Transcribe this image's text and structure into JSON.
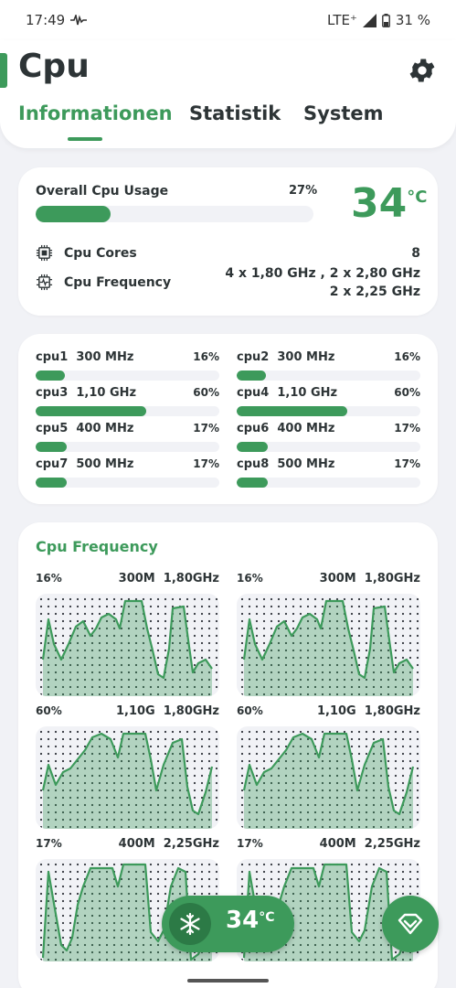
{
  "status_bar": {
    "time": "17:49",
    "network": "LTE⁺",
    "battery": "31 %"
  },
  "header": {
    "title": "Cpu",
    "tabs": [
      {
        "label": "Informationen",
        "active": true
      },
      {
        "label": "Statistik",
        "active": false
      },
      {
        "label": "System",
        "active": false
      }
    ]
  },
  "overview": {
    "usage_label": "Overall Cpu Usage",
    "usage_pct": "27%",
    "usage_value": 27,
    "temperature": "34",
    "temperature_unit": "°C",
    "cores_label": "Cpu Cores",
    "cores_value": "8",
    "frequency_label": "Cpu Frequency",
    "frequency_line1": "4 x 1,80 GHz , 2 x 2,80 GHz",
    "frequency_line2": "2 x 2,25 GHz"
  },
  "cores": [
    {
      "name": "cpu1",
      "freq": "300 MHz",
      "pct": "16%",
      "value": 16
    },
    {
      "name": "cpu2",
      "freq": "300 MHz",
      "pct": "16%",
      "value": 16
    },
    {
      "name": "cpu3",
      "freq": "1,10 GHz",
      "pct": "60%",
      "value": 60
    },
    {
      "name": "cpu4",
      "freq": "1,10 GHz",
      "pct": "60%",
      "value": 60
    },
    {
      "name": "cpu5",
      "freq": "400 MHz",
      "pct": "17%",
      "value": 17
    },
    {
      "name": "cpu6",
      "freq": "400 MHz",
      "pct": "17%",
      "value": 17
    },
    {
      "name": "cpu7",
      "freq": "500 MHz",
      "pct": "17%",
      "value": 17
    },
    {
      "name": "cpu8",
      "freq": "500 MHz",
      "pct": "17%",
      "value": 17
    }
  ],
  "frequency_graphs": {
    "title": "Cpu Frequency",
    "graphs": [
      {
        "pct": "16%",
        "current": "300M",
        "max": "1,80GHz"
      },
      {
        "pct": "16%",
        "current": "300M",
        "max": "1,80GHz"
      },
      {
        "pct": "60%",
        "current": "1,10G",
        "max": "1,80GHz"
      },
      {
        "pct": "60%",
        "current": "1,10G",
        "max": "1,80GHz"
      },
      {
        "pct": "17%",
        "current": "400M",
        "max": "2,25GHz"
      },
      {
        "pct": "17%",
        "current": "400M",
        "max": "2,25GHz"
      }
    ]
  },
  "fab": {
    "temperature": "34",
    "unit": "°C"
  },
  "colors": {
    "accent": "#3d9a5b",
    "accent_dark": "#2c7a46",
    "background": "#f1f2f6"
  }
}
